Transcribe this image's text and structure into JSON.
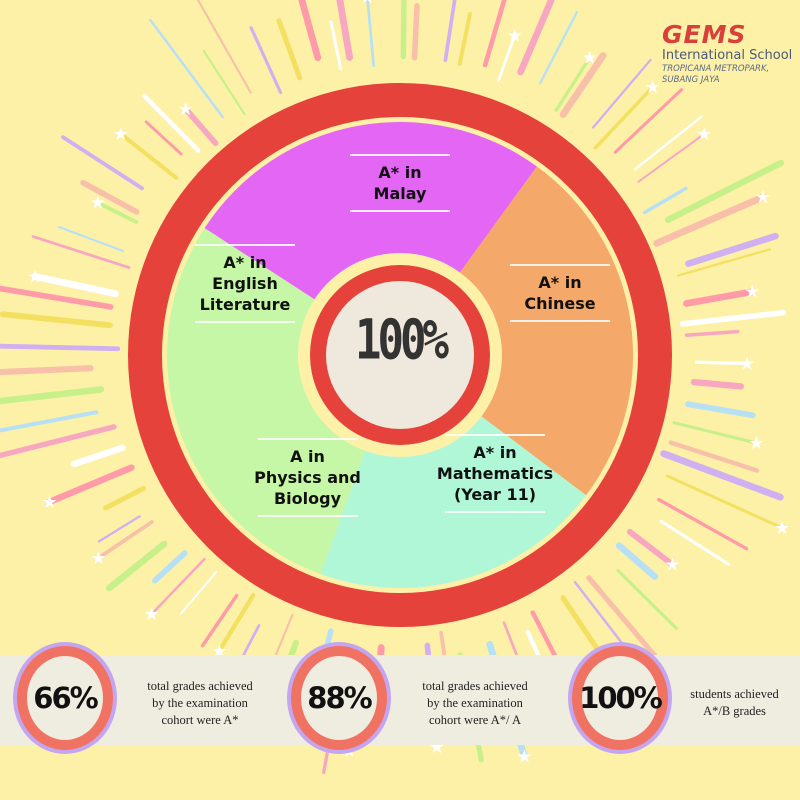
{
  "brand": {
    "name": "GEMS",
    "subtitle": "International School",
    "location_line1": "TROPICANA METROPARK,",
    "location_line2": "SUBANG JAYA",
    "color": "#d8403a"
  },
  "wheel": {
    "center_value": "100%",
    "segments": [
      {
        "label_lines": [
          "A* in",
          "Malay"
        ],
        "color": "#e466f5"
      },
      {
        "label_lines": [
          "A* in",
          "Chinese"
        ],
        "color": "#f4a86a"
      },
      {
        "label_lines": [
          "A* in",
          "Mathematics",
          "(Year 11)"
        ],
        "color": "#b0f7d8"
      },
      {
        "label_lines": [
          "A in",
          "Physics and",
          "Biology"
        ],
        "color": "#c6f7a6"
      },
      {
        "label_lines": [
          "A* in",
          "English",
          "Literature"
        ],
        "color": "#c6f7a6"
      }
    ],
    "ring_color": "#e4423a"
  },
  "stats": [
    {
      "value": "66%",
      "lines": [
        "total grades achieved",
        "by the examination",
        "cohort were A*"
      ]
    },
    {
      "value": "88%",
      "lines": [
        "total grades achieved",
        "by the examination",
        "cohort were A*/ A"
      ]
    },
    {
      "value": "100%",
      "lines": [
        "students achieved",
        "A*/B grades"
      ]
    }
  ]
}
